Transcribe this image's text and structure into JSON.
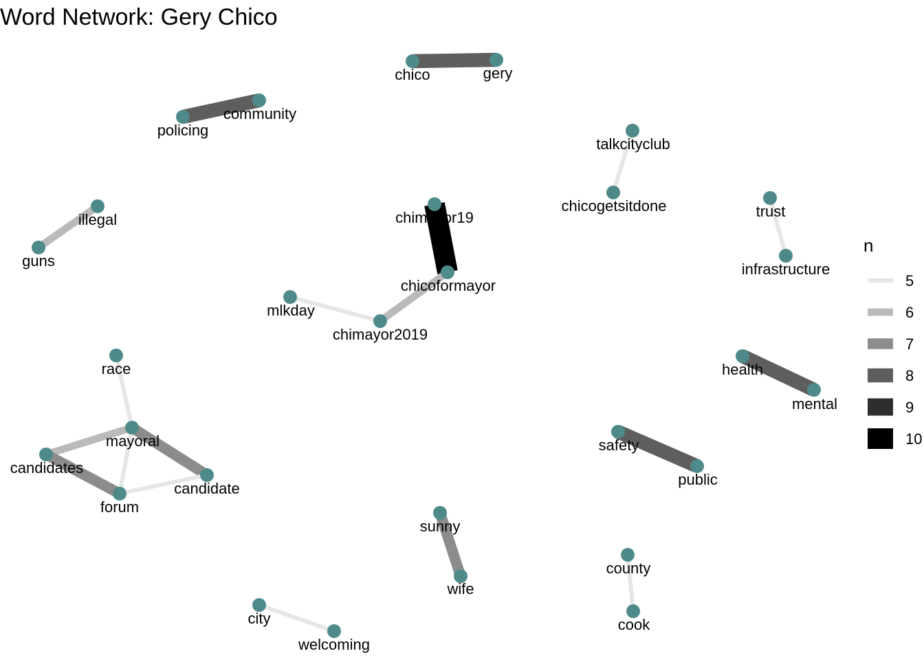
{
  "title": "Word Network: Gery Chico",
  "colors": {
    "node": "#4e8a8a",
    "background": "#ffffff"
  },
  "legend": {
    "title": "n",
    "items": [
      {
        "value": 5,
        "color": "#e6e6e6"
      },
      {
        "value": 6,
        "color": "#bababa"
      },
      {
        "value": 7,
        "color": "#8c8c8c"
      },
      {
        "value": 8,
        "color": "#5e5e5e"
      },
      {
        "value": 9,
        "color": "#2e2e2e"
      },
      {
        "value": 10,
        "color": "#000000"
      }
    ]
  },
  "nodes": [
    {
      "id": "chico",
      "label": "chico"
    },
    {
      "id": "gery",
      "label": "gery"
    },
    {
      "id": "policing",
      "label": "policing"
    },
    {
      "id": "community",
      "label": "community"
    },
    {
      "id": "talkcityclub",
      "label": "talkcityclub"
    },
    {
      "id": "chicogetsitdone",
      "label": "chicogetsitdone"
    },
    {
      "id": "illegal",
      "label": "illegal"
    },
    {
      "id": "guns",
      "label": "guns"
    },
    {
      "id": "chimayor19",
      "label": "chimayor19"
    },
    {
      "id": "chicoformayor",
      "label": "chicoformayor"
    },
    {
      "id": "trust",
      "label": "trust"
    },
    {
      "id": "infrastructure",
      "label": "infrastructure"
    },
    {
      "id": "mlkday",
      "label": "mlkday"
    },
    {
      "id": "chimayor2019",
      "label": "chimayor2019"
    },
    {
      "id": "race",
      "label": "race"
    },
    {
      "id": "health",
      "label": "health"
    },
    {
      "id": "mental",
      "label": "mental"
    },
    {
      "id": "mayoral",
      "label": "mayoral"
    },
    {
      "id": "candidates",
      "label": "candidates"
    },
    {
      "id": "candidate",
      "label": "candidate"
    },
    {
      "id": "forum",
      "label": "forum"
    },
    {
      "id": "safety",
      "label": "safety"
    },
    {
      "id": "public",
      "label": "public"
    },
    {
      "id": "sunny",
      "label": "sunny"
    },
    {
      "id": "wife",
      "label": "wife"
    },
    {
      "id": "county",
      "label": "county"
    },
    {
      "id": "cook",
      "label": "cook"
    },
    {
      "id": "city",
      "label": "city"
    },
    {
      "id": "welcoming",
      "label": "welcoming"
    }
  ],
  "edges": [
    {
      "from": "chico",
      "to": "gery",
      "n": 8
    },
    {
      "from": "policing",
      "to": "community",
      "n": 8
    },
    {
      "from": "talkcityclub",
      "to": "chicogetsitdone",
      "n": 5
    },
    {
      "from": "illegal",
      "to": "guns",
      "n": 6
    },
    {
      "from": "chimayor19",
      "to": "chicoformayor",
      "n": 10
    },
    {
      "from": "trust",
      "to": "infrastructure",
      "n": 5
    },
    {
      "from": "chicoformayor",
      "to": "chimayor2019",
      "n": 6
    },
    {
      "from": "mlkday",
      "to": "chimayor2019",
      "n": 5
    },
    {
      "from": "race",
      "to": "mayoral",
      "n": 5
    },
    {
      "from": "health",
      "to": "mental",
      "n": 8
    },
    {
      "from": "mayoral",
      "to": "candidates",
      "n": 6
    },
    {
      "from": "mayoral",
      "to": "candidate",
      "n": 7
    },
    {
      "from": "mayoral",
      "to": "forum",
      "n": 5
    },
    {
      "from": "candidates",
      "to": "forum",
      "n": 7
    },
    {
      "from": "forum",
      "to": "candidate",
      "n": 5
    },
    {
      "from": "safety",
      "to": "public",
      "n": 8
    },
    {
      "from": "sunny",
      "to": "wife",
      "n": 7
    },
    {
      "from": "county",
      "to": "cook",
      "n": 5
    },
    {
      "from": "city",
      "to": "welcoming",
      "n": 5
    }
  ]
}
